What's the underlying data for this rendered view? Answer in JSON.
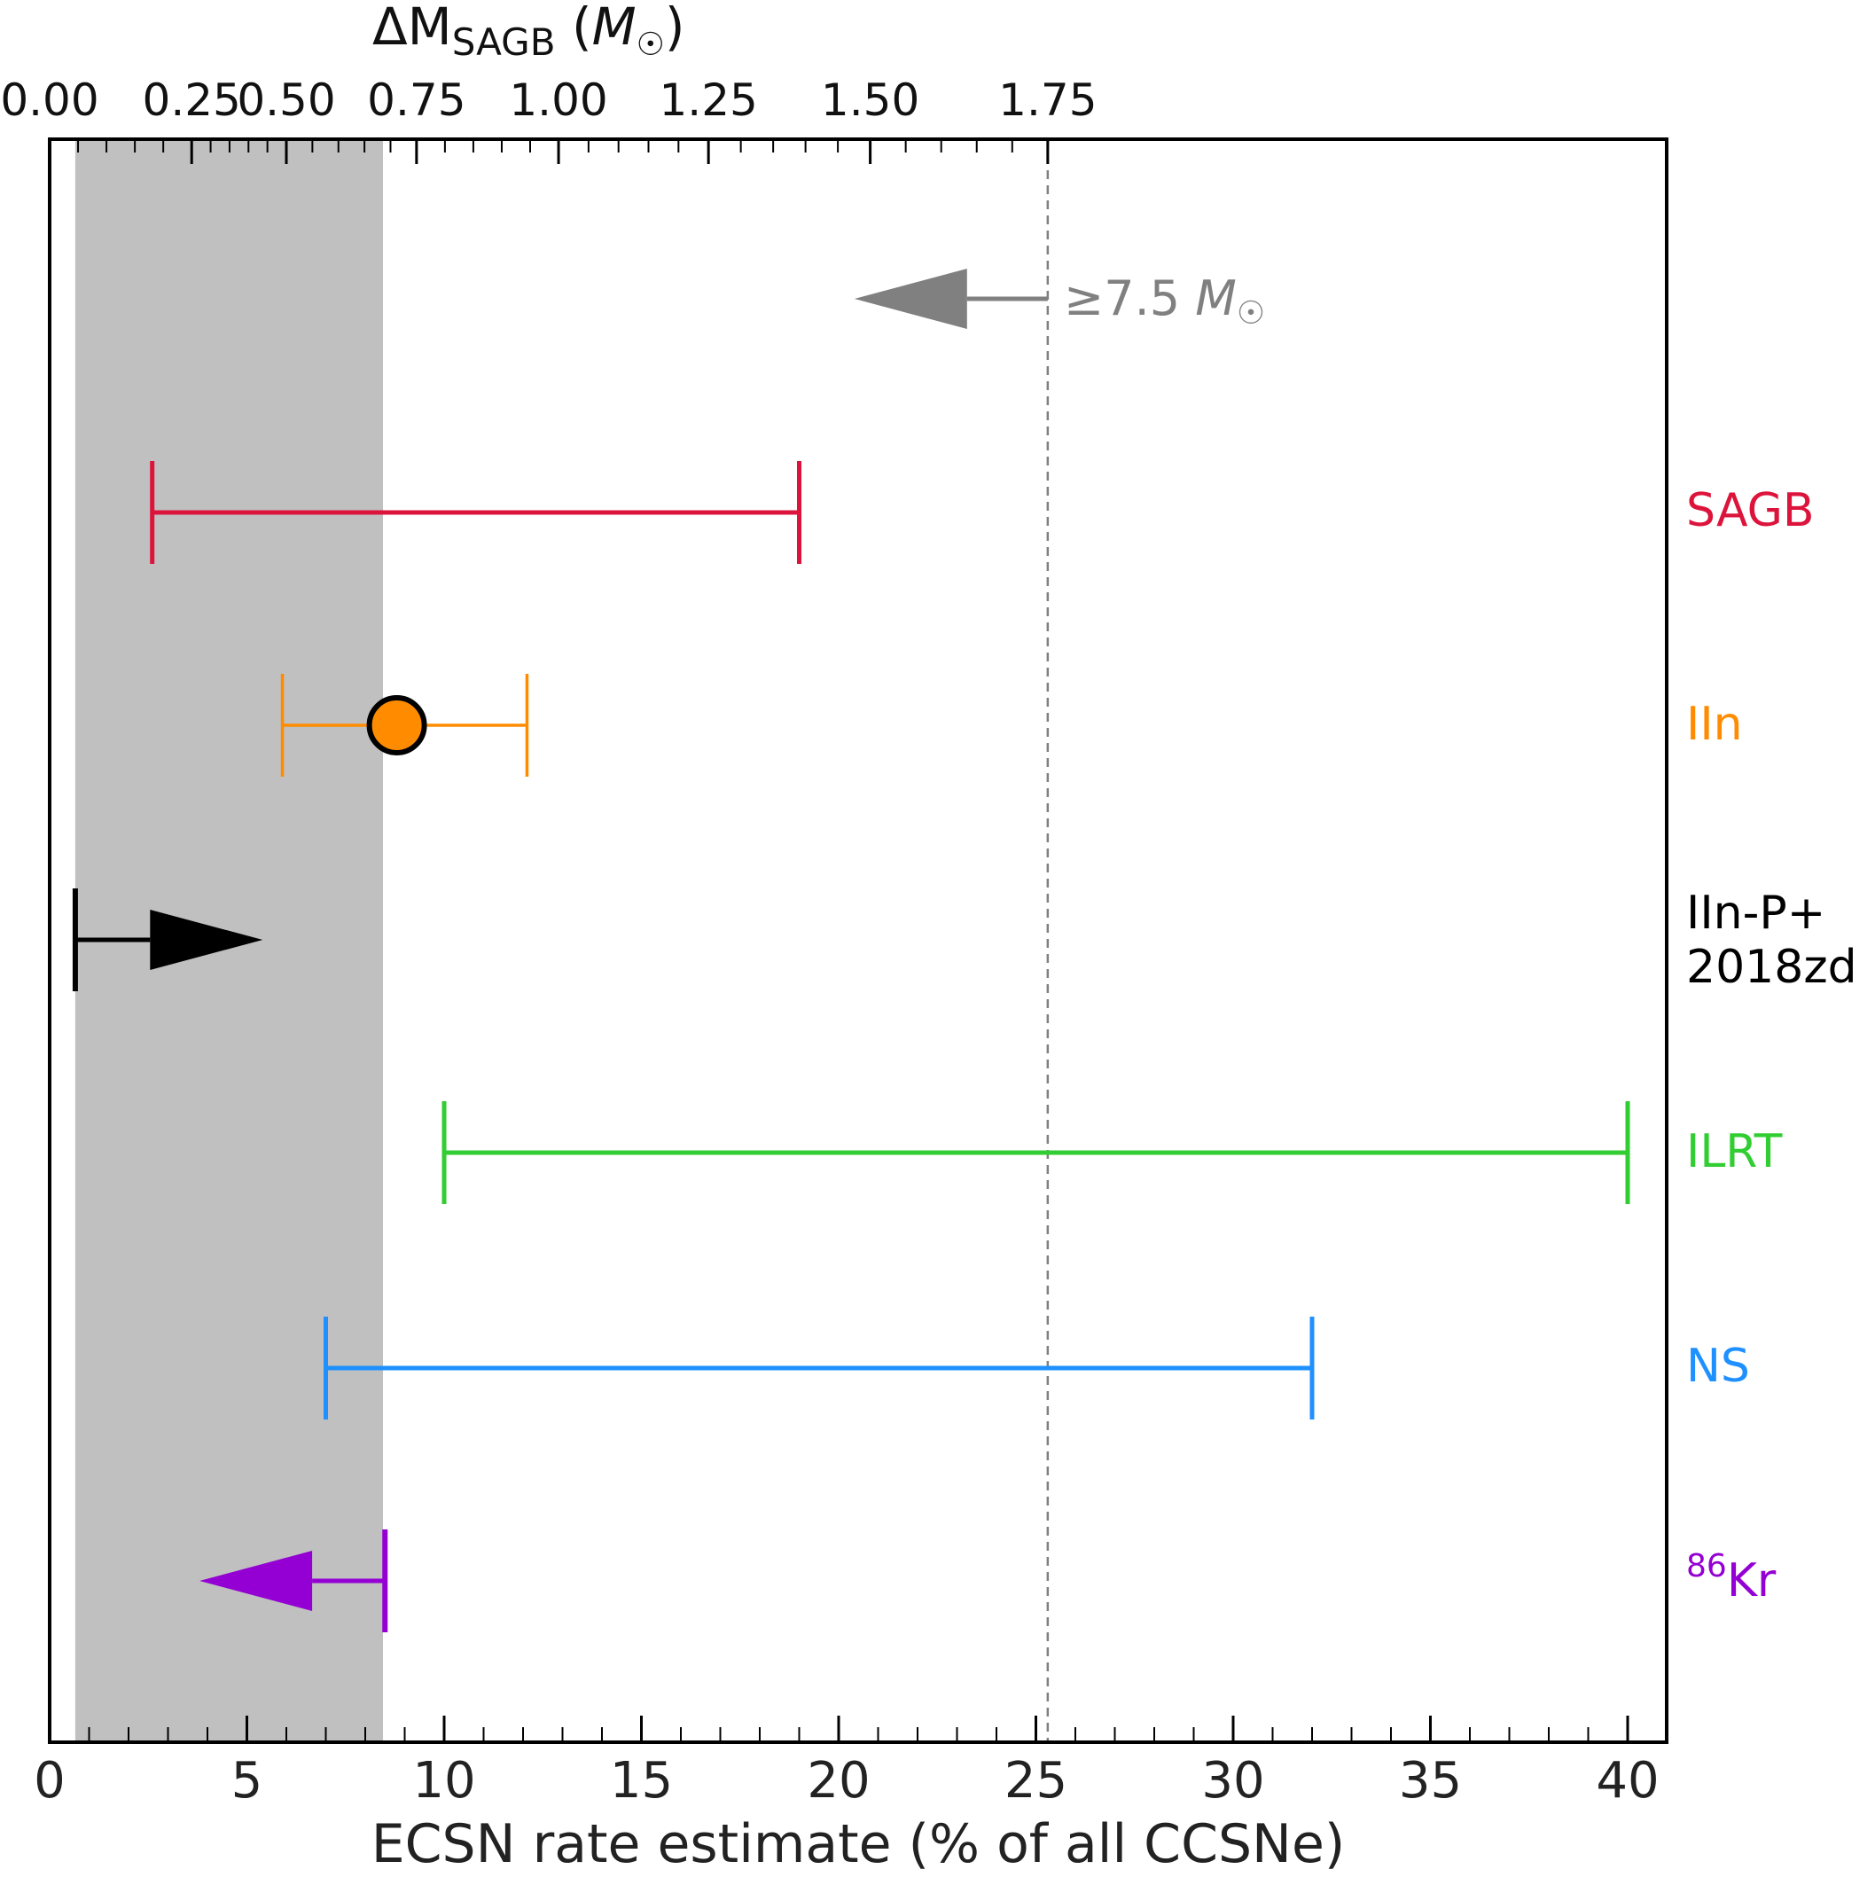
{
  "chart_data": {
    "type": "errorbar",
    "title": "",
    "xlabel": "ECSN rate estimate (% of all CCSNe)",
    "top_xlabel": {
      "main": "ΔM",
      "sub": "SAGB",
      "unit_open": " (",
      "unit": "M",
      "unit_sub": "☉",
      "unit_close": ")"
    },
    "xlim": [
      0,
      41
    ],
    "x_ticks": [
      0,
      5,
      10,
      15,
      20,
      25,
      30,
      35,
      40
    ],
    "x_tick_labels": [
      "0",
      "5",
      "10",
      "15",
      "20",
      "25",
      "30",
      "35",
      "40"
    ],
    "x_minor_step": 1,
    "top_ticks": [
      {
        "label": "0.00",
        "x": 0.0
      },
      {
        "label": "0.25",
        "x": 3.6
      },
      {
        "label": "0.50",
        "x": 6.0
      },
      {
        "label": "0.75",
        "x": 9.3
      },
      {
        "label": "1.00",
        "x": 12.9
      },
      {
        "label": "1.25",
        "x": 16.7
      },
      {
        "label": "1.50",
        "x": 20.8
      },
      {
        "label": "1.75",
        "x": 25.3
      }
    ],
    "shaded_band": {
      "x0": 0.65,
      "x1": 8.45,
      "color": "#c0c0c0"
    },
    "dashed_line": {
      "x": 25.3,
      "color": "#808080"
    },
    "grid": false,
    "legend": "right-side category labels",
    "series": [
      {
        "name": "SAGB",
        "type": "range",
        "low": 2.6,
        "high": 19.0,
        "color": "#dc143c"
      },
      {
        "name": "IIn",
        "type": "range_with_point",
        "low": 5.9,
        "high": 12.1,
        "value": 8.8,
        "color": "#ff8c00"
      },
      {
        "name": "IIn-P+ 2018zd",
        "label_lines": [
          "IIn-P+",
          "2018zd"
        ],
        "type": "lower_limit",
        "value": 0.65,
        "arrow_to": 5.4,
        "color": "#000000"
      },
      {
        "name": "ILRT",
        "type": "range",
        "low": 10.0,
        "high": 40.0,
        "color": "#32cd32"
      },
      {
        "name": "NS",
        "type": "range",
        "low": 7.0,
        "high": 32.0,
        "color": "#1e90ff"
      },
      {
        "name": "86Kr",
        "label_sup": "86",
        "label_main": "Kr",
        "type": "upper_limit",
        "value": 8.5,
        "arrow_to": 3.8,
        "color": "#9400d3"
      }
    ],
    "annotation": {
      "text_ge": "≥",
      "text_value": "7.5 ",
      "text_M": "M",
      "text_sun": "☉",
      "type": "upper_limit",
      "value": 25.3,
      "arrow_to": 20.4,
      "color": "#808080"
    }
  }
}
